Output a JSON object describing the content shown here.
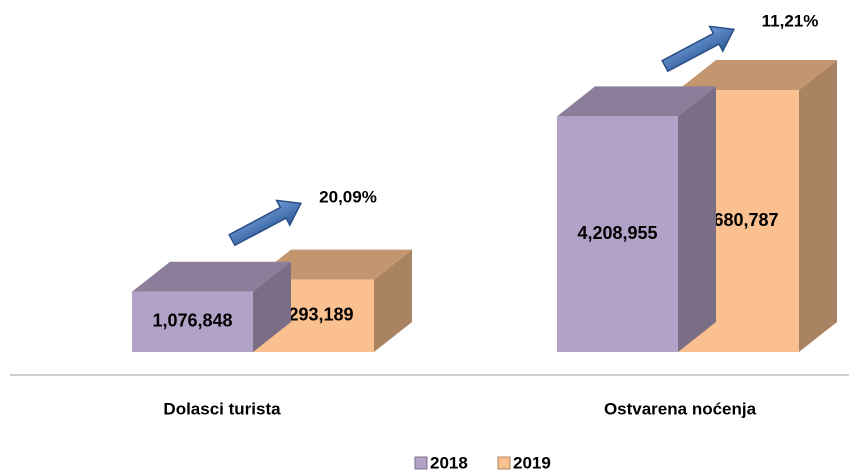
{
  "chart_data": {
    "type": "bar",
    "categories": [
      "Dolasci turista",
      "Ostvarena noćenja"
    ],
    "series": [
      {
        "name": "2018",
        "color": "#b3a2c7",
        "values": [
          1076848,
          4208955
        ],
        "value_labels": [
          "1,076,848",
          "4,208,955"
        ]
      },
      {
        "name": "2019",
        "color": "#fac090",
        "values": [
          1293189,
          4680787
        ],
        "value_labels": [
          "1,293,189",
          "4,680,787"
        ]
      }
    ],
    "annotations": [
      "20,09%",
      "11,21%"
    ],
    "legend": "bottom"
  }
}
